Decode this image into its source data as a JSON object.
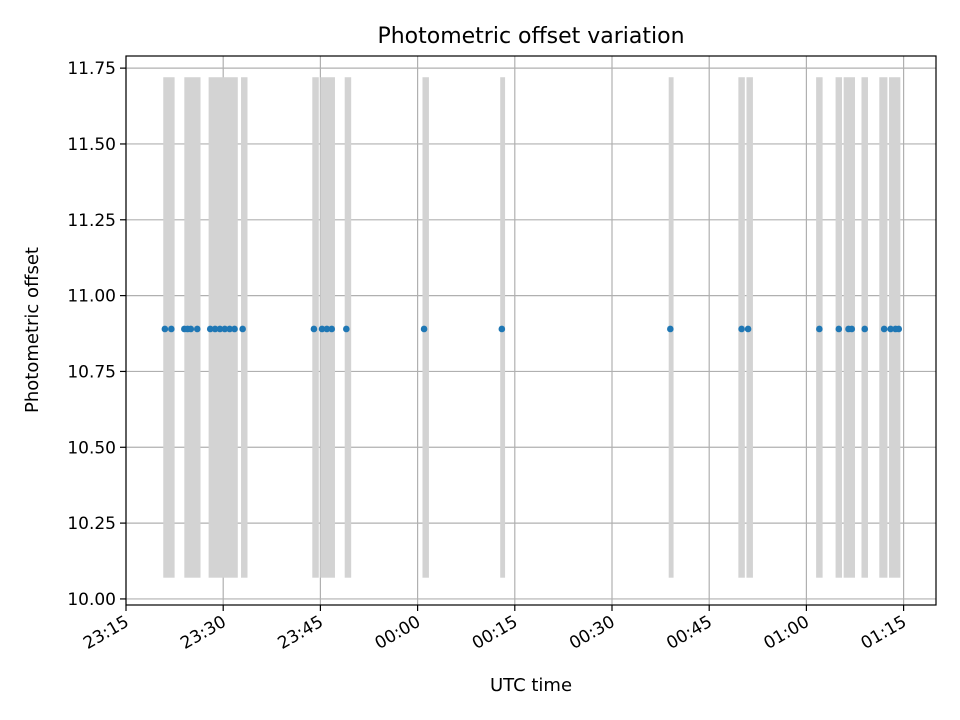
{
  "chart_data": {
    "type": "scatter",
    "title": "Photometric offset variation",
    "xlabel": "UTC time",
    "ylabel": "Photometric offset",
    "x_axis": "time (HH:MM)",
    "xlim": [
      "23:15",
      "01:20"
    ],
    "ylim": [
      10.0,
      11.8
    ],
    "x_ticks": [
      "23:15",
      "23:30",
      "23:45",
      "00:00",
      "00:15",
      "00:30",
      "00:45",
      "01:00",
      "01:15"
    ],
    "y_ticks": [
      "10.00",
      "10.25",
      "10.50",
      "10.75",
      "11.00",
      "11.25",
      "11.50",
      "11.75"
    ],
    "grid": true,
    "point_color": "#1f77b4",
    "band_color": "#d3d3d3",
    "band_range": [
      10.07,
      11.72
    ],
    "points": [
      {
        "t": "23:21",
        "y": 10.89
      },
      {
        "t": "23:22",
        "y": 10.89
      },
      {
        "t": "23:24",
        "y": 10.89
      },
      {
        "t": "23:24:30",
        "y": 10.89
      },
      {
        "t": "23:25",
        "y": 10.89
      },
      {
        "t": "23:26",
        "y": 10.89
      },
      {
        "t": "23:28",
        "y": 10.89
      },
      {
        "t": "23:28:45",
        "y": 10.89
      },
      {
        "t": "23:29:30",
        "y": 10.89
      },
      {
        "t": "23:30:15",
        "y": 10.89
      },
      {
        "t": "23:31",
        "y": 10.89
      },
      {
        "t": "23:31:45",
        "y": 10.89
      },
      {
        "t": "23:33",
        "y": 10.89
      },
      {
        "t": "23:44",
        "y": 10.89
      },
      {
        "t": "23:45:15",
        "y": 10.89
      },
      {
        "t": "23:46",
        "y": 10.89
      },
      {
        "t": "23:46:45",
        "y": 10.89
      },
      {
        "t": "23:49",
        "y": 10.89
      },
      {
        "t": "00:01",
        "y": 10.89
      },
      {
        "t": "00:13",
        "y": 10.89
      },
      {
        "t": "00:39",
        "y": 10.89
      },
      {
        "t": "00:50",
        "y": 10.89
      },
      {
        "t": "00:51",
        "y": 10.89
      },
      {
        "t": "01:02",
        "y": 10.89
      },
      {
        "t": "01:05",
        "y": 10.89
      },
      {
        "t": "01:06:30",
        "y": 10.89
      },
      {
        "t": "01:07",
        "y": 10.89
      },
      {
        "t": "01:09",
        "y": 10.89
      },
      {
        "t": "01:12",
        "y": 10.89
      },
      {
        "t": "01:13",
        "y": 10.89
      },
      {
        "t": "01:13:45",
        "y": 10.89
      },
      {
        "t": "01:14:15",
        "y": 10.89
      }
    ],
    "bands": [
      {
        "start": "23:20:45",
        "end": "23:22:30"
      },
      {
        "start": "23:24",
        "end": "23:26:30"
      },
      {
        "start": "23:27:45",
        "end": "23:32:15"
      },
      {
        "start": "23:32:45",
        "end": "23:33:45"
      },
      {
        "start": "23:43:45",
        "end": "23:44:45"
      },
      {
        "start": "23:45",
        "end": "23:47:15"
      },
      {
        "start": "23:48:45",
        "end": "23:49:45"
      },
      {
        "start": "00:00:45",
        "end": "00:01:45"
      },
      {
        "start": "00:12:45",
        "end": "00:13:30"
      },
      {
        "start": "00:38:45",
        "end": "00:39:30"
      },
      {
        "start": "00:49:30",
        "end": "00:50:30"
      },
      {
        "start": "00:50:45",
        "end": "00:51:45"
      },
      {
        "start": "01:01:30",
        "end": "01:02:30"
      },
      {
        "start": "01:04:30",
        "end": "01:05:30"
      },
      {
        "start": "01:05:45",
        "end": "01:07:30"
      },
      {
        "start": "01:08:30",
        "end": "01:09:30"
      },
      {
        "start": "01:11:15",
        "end": "01:12:30"
      },
      {
        "start": "01:12:45",
        "end": "01:14:30"
      }
    ]
  }
}
